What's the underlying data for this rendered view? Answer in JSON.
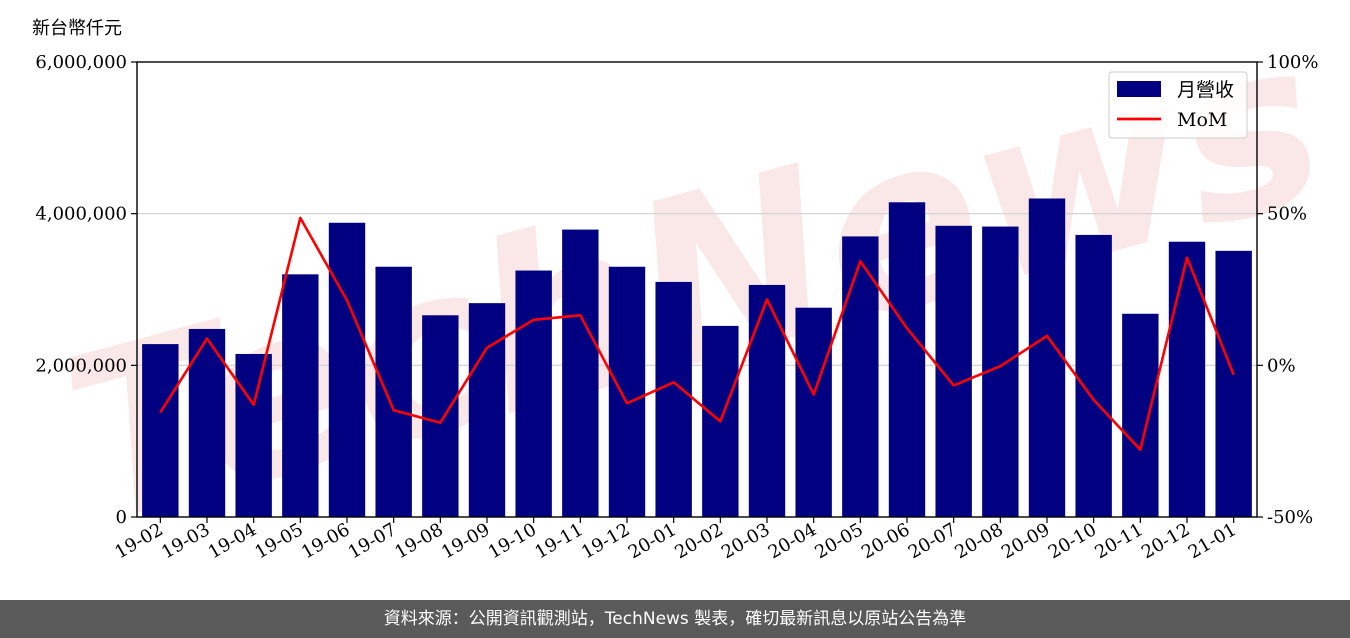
{
  "chart_data": {
    "type": "bar",
    "unit_label": "新台幣仟元",
    "categories": [
      "19-02",
      "19-03",
      "19-04",
      "19-05",
      "19-06",
      "19-07",
      "19-08",
      "19-09",
      "19-10",
      "19-11",
      "19-12",
      "20-01",
      "20-02",
      "20-03",
      "20-04",
      "20-05",
      "20-06",
      "20-07",
      "20-08",
      "20-09",
      "20-10",
      "20-11",
      "20-12",
      "21-01"
    ],
    "series": [
      {
        "name": "月營收",
        "type": "bar",
        "axis": "left",
        "color": "#000080",
        "values": [
          2280000,
          2480000,
          2150000,
          3200000,
          3880000,
          3300000,
          2660000,
          2820000,
          3250000,
          3790000,
          3300000,
          3100000,
          2520000,
          3060000,
          2760000,
          3700000,
          4150000,
          3840000,
          3830000,
          4200000,
          3720000,
          2680000,
          3630000,
          3510000
        ]
      },
      {
        "name": "MoM",
        "type": "line",
        "axis": "right",
        "color": "#ff0000",
        "values": [
          -15.5,
          8.8,
          -13.0,
          48.6,
          21.4,
          -14.8,
          -18.9,
          5.8,
          15.0,
          16.5,
          -12.5,
          -5.6,
          -18.5,
          21.7,
          -9.6,
          34.3,
          12.2,
          -6.6,
          -0.3,
          9.7,
          -11.4,
          -27.8,
          35.5,
          -3.1
        ]
      }
    ],
    "y_left": {
      "ylim": [
        0,
        6000000
      ],
      "ticks": [
        "0",
        "2,000,000",
        "4,000,000",
        "6,000,000"
      ],
      "tick_values": [
        0,
        2000000,
        4000000,
        6000000
      ]
    },
    "y_right": {
      "ylim": [
        -50,
        100
      ],
      "ticks": [
        "-50%",
        "0%",
        "50%",
        "100%"
      ],
      "tick_values": [
        -50,
        0,
        50,
        100
      ]
    },
    "grid": "horizontal",
    "legend_position": "top-right",
    "watermark": "TechNews"
  },
  "footer": {
    "source_text": "資料來源：公開資訊觀測站，TechNews 製表，確切最新訊息以原站公告為準"
  }
}
